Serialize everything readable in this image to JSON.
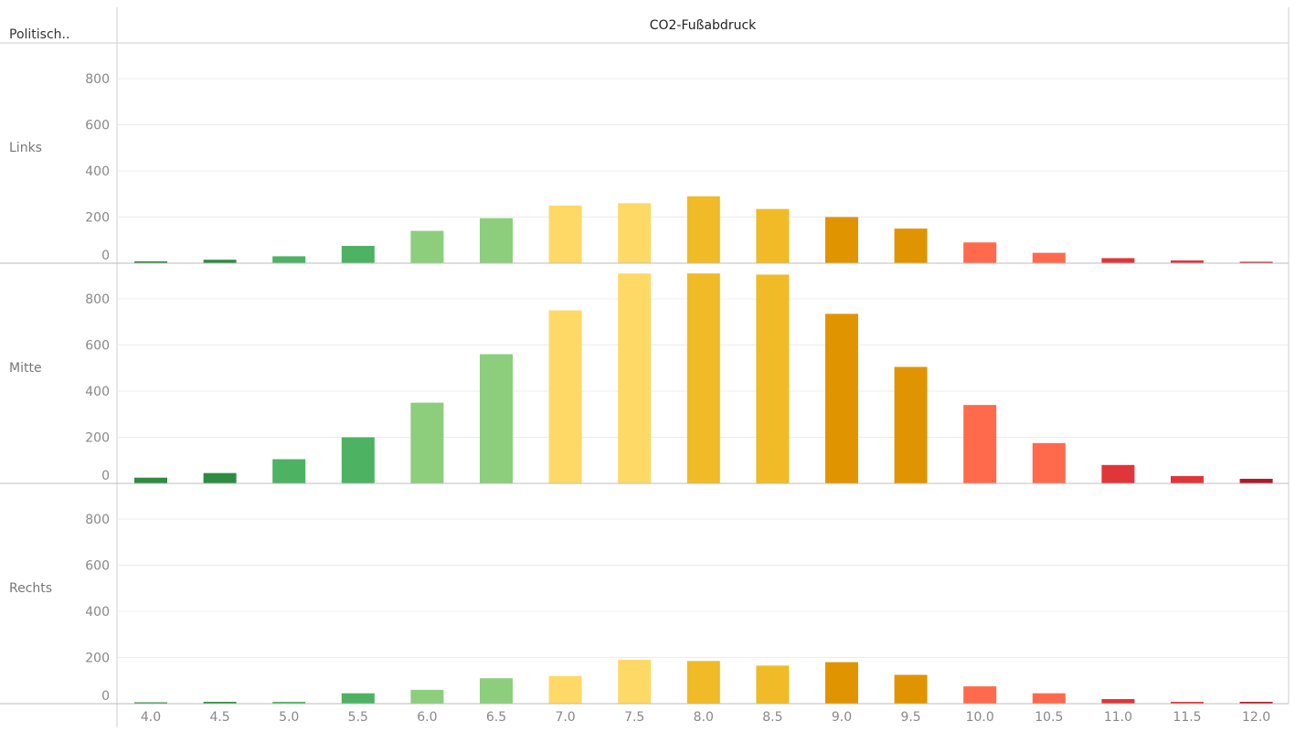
{
  "chart_data": {
    "type": "bar",
    "row_header": "Politisch..",
    "column_header": "CO2-Fußabdruck",
    "categories": [
      "4.0",
      "4.5",
      "5.0",
      "5.5",
      "6.0",
      "6.5",
      "7.0",
      "7.5",
      "8.0",
      "8.5",
      "9.0",
      "9.5",
      "10.0",
      "10.5",
      "11.0",
      "11.5",
      "12.0"
    ],
    "y_ticks": [
      "0",
      "200",
      "400",
      "600",
      "800"
    ],
    "ylim": [
      0,
      950
    ],
    "grid": true,
    "legend": "none",
    "bar_colors": [
      "#2e8b40",
      "#2e8b40",
      "#4db262",
      "#4db262",
      "#8cce7c",
      "#8cce7c",
      "#ffd966",
      "#ffd966",
      "#f0bb27",
      "#f0bb27",
      "#e09500",
      "#e09500",
      "#ff6a4c",
      "#ff6a4c",
      "#e0363a",
      "#e0363a",
      "#b01a25"
    ],
    "series": [
      {
        "name": "Links",
        "values": [
          8,
          15,
          30,
          75,
          140,
          195,
          250,
          260,
          290,
          235,
          200,
          150,
          90,
          45,
          22,
          12,
          5
        ]
      },
      {
        "name": "Mitte",
        "values": [
          25,
          45,
          105,
          200,
          350,
          560,
          750,
          910,
          910,
          905,
          735,
          505,
          340,
          175,
          80,
          32,
          20
        ]
      },
      {
        "name": "Rechts",
        "values": [
          5,
          8,
          8,
          45,
          60,
          110,
          120,
          190,
          185,
          165,
          180,
          125,
          75,
          45,
          20,
          8,
          8
        ]
      }
    ]
  }
}
